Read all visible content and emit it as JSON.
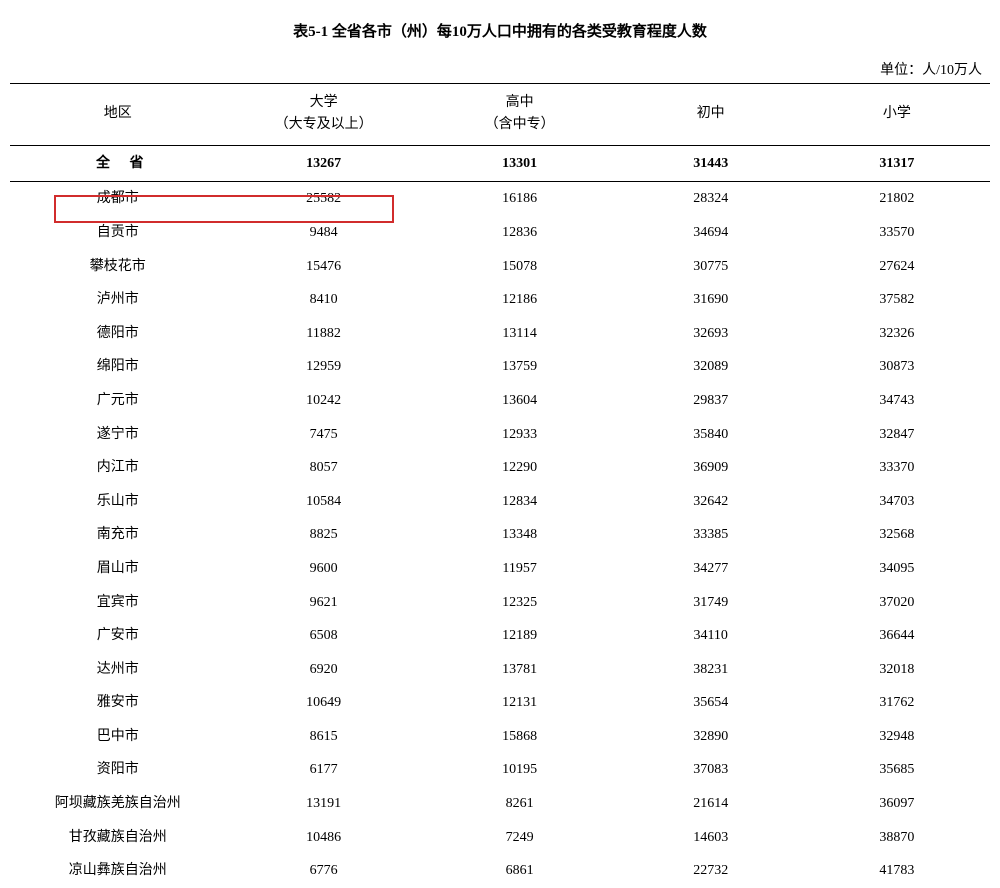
{
  "title": "表5-1 全省各市（州）每10万人口中拥有的各类受教育程度人数",
  "unit": "单位：人/10万人",
  "columns": {
    "region": "地区",
    "college_line1": "大学",
    "college_line2": "（大专及以上）",
    "highschool_line1": "高中",
    "highschool_line2": "（含中专）",
    "middle": "初中",
    "primary": "小学"
  },
  "summary": {
    "region": "全 省",
    "college": "13267",
    "highschool": "13301",
    "middle": "31443",
    "primary": "31317"
  },
  "rows": [
    {
      "region": "成都市",
      "college": "25582",
      "highschool": "16186",
      "middle": "28324",
      "primary": "21802"
    },
    {
      "region": "自贡市",
      "college": "9484",
      "highschool": "12836",
      "middle": "34694",
      "primary": "33570"
    },
    {
      "region": "攀枝花市",
      "college": "15476",
      "highschool": "15078",
      "middle": "30775",
      "primary": "27624"
    },
    {
      "region": "泸州市",
      "college": "8410",
      "highschool": "12186",
      "middle": "31690",
      "primary": "37582"
    },
    {
      "region": "德阳市",
      "college": "11882",
      "highschool": "13114",
      "middle": "32693",
      "primary": "32326"
    },
    {
      "region": "绵阳市",
      "college": "12959",
      "highschool": "13759",
      "middle": "32089",
      "primary": "30873"
    },
    {
      "region": "广元市",
      "college": "10242",
      "highschool": "13604",
      "middle": "29837",
      "primary": "34743"
    },
    {
      "region": "遂宁市",
      "college": "7475",
      "highschool": "12933",
      "middle": "35840",
      "primary": "32847"
    },
    {
      "region": "内江市",
      "college": "8057",
      "highschool": "12290",
      "middle": "36909",
      "primary": "33370"
    },
    {
      "region": "乐山市",
      "college": "10584",
      "highschool": "12834",
      "middle": "32642",
      "primary": "34703"
    },
    {
      "region": "南充市",
      "college": "8825",
      "highschool": "13348",
      "middle": "33385",
      "primary": "32568"
    },
    {
      "region": "眉山市",
      "college": "9600",
      "highschool": "11957",
      "middle": "34277",
      "primary": "34095"
    },
    {
      "region": "宜宾市",
      "college": "9621",
      "highschool": "12325",
      "middle": "31749",
      "primary": "37020"
    },
    {
      "region": "广安市",
      "college": "6508",
      "highschool": "12189",
      "middle": "34110",
      "primary": "36644"
    },
    {
      "region": "达州市",
      "college": "6920",
      "highschool": "13781",
      "middle": "38231",
      "primary": "32018"
    },
    {
      "region": "雅安市",
      "college": "10649",
      "highschool": "12131",
      "middle": "35654",
      "primary": "31762"
    },
    {
      "region": "巴中市",
      "college": "8615",
      "highschool": "15868",
      "middle": "32890",
      "primary": "32948"
    },
    {
      "region": "资阳市",
      "college": "6177",
      "highschool": "10195",
      "middle": "37083",
      "primary": "35685"
    },
    {
      "region": "阿坝藏族羌族自治州",
      "college": "13191",
      "highschool": "8261",
      "middle": "21614",
      "primary": "36097"
    },
    {
      "region": "甘孜藏族自治州",
      "college": "10486",
      "highschool": "7249",
      "middle": "14603",
      "primary": "38870"
    },
    {
      "region": "凉山彝族自治州",
      "college": "6776",
      "highschool": "6861",
      "middle": "22732",
      "primary": "41783"
    }
  ],
  "styling": {
    "type": "table",
    "background_color": "#ffffff",
    "text_color": "#000000",
    "border_color": "#000000",
    "highlight_border_color": "#d12c2c",
    "highlight_border_width": 2,
    "font_family": "SimSun",
    "body_fontsize": 14,
    "title_fontsize": 15,
    "column_widths_pct": [
      22,
      20,
      20,
      19,
      19
    ],
    "highlighted_row_index": 0,
    "highlighted_col_span": [
      0,
      1
    ]
  }
}
